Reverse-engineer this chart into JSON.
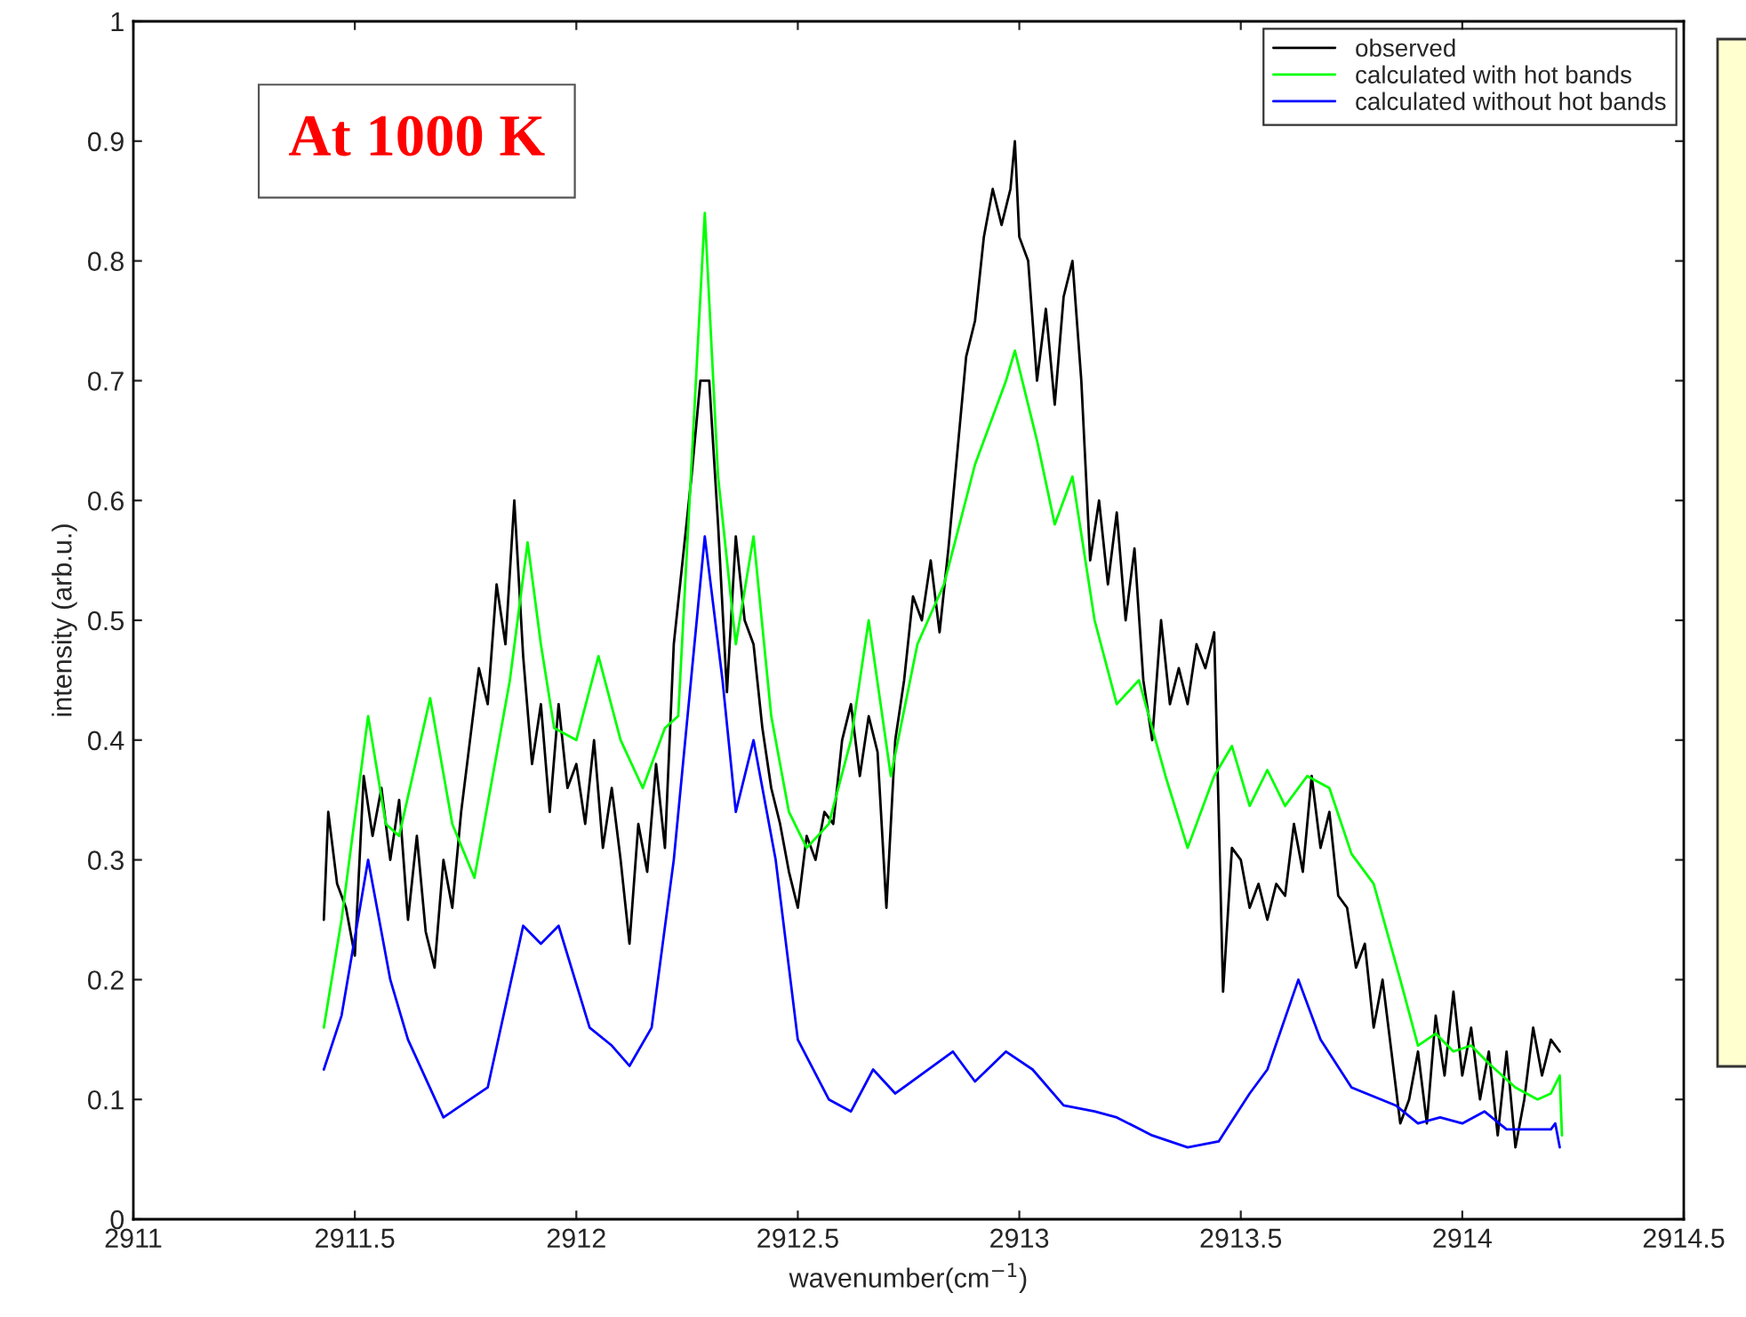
{
  "chart_data": {
    "type": "line",
    "xlabel": "wavenumber(cm$^{−1}$)",
    "ylabel": "intensity (arb.u.)",
    "annotations": [
      "At 1000 K"
    ],
    "xlim": [
      2911,
      2914.5
    ],
    "xticks": [
      2911,
      2911.5,
      2912,
      2912.5,
      2913,
      2913.5,
      2914,
      2914.5
    ],
    "ylim": [
      0,
      1
    ],
    "yticks": [
      0,
      0.1,
      0.2,
      0.3,
      0.4,
      0.5,
      0.6,
      0.7,
      0.8,
      0.9,
      1
    ],
    "grid": false,
    "legend": "top right",
    "marker": "none",
    "line_style": "solid",
    "series": [
      {
        "name": "observed",
        "color": "#000000",
        "x": [
          2911.43,
          2911.44,
          2911.46,
          2911.48,
          2911.5,
          2911.52,
          2911.54,
          2911.56,
          2911.58,
          2911.6,
          2911.62,
          2911.64,
          2911.66,
          2911.68,
          2911.7,
          2911.72,
          2911.74,
          2911.76,
          2911.78,
          2911.8,
          2911.82,
          2911.84,
          2911.86,
          2911.88,
          2911.9,
          2911.92,
          2911.94,
          2911.96,
          2911.98,
          2912.0,
          2912.02,
          2912.04,
          2912.06,
          2912.08,
          2912.1,
          2912.12,
          2912.14,
          2912.16,
          2912.18,
          2912.2,
          2912.22,
          2912.24,
          2912.26,
          2912.28,
          2912.3,
          2912.32,
          2912.34,
          2912.36,
          2912.38,
          2912.4,
          2912.42,
          2912.44,
          2912.46,
          2912.48,
          2912.5,
          2912.52,
          2912.54,
          2912.56,
          2912.58,
          2912.6,
          2912.62,
          2912.64,
          2912.66,
          2912.68,
          2912.7,
          2912.72,
          2912.74,
          2912.76,
          2912.78,
          2912.8,
          2912.82,
          2912.84,
          2912.86,
          2912.88,
          2912.9,
          2912.92,
          2912.94,
          2912.96,
          2912.98,
          2912.99,
          2913.0,
          2913.02,
          2913.04,
          2913.06,
          2913.08,
          2913.1,
          2913.12,
          2913.14,
          2913.16,
          2913.18,
          2913.2,
          2913.22,
          2913.24,
          2913.26,
          2913.28,
          2913.3,
          2913.32,
          2913.34,
          2913.36,
          2913.38,
          2913.4,
          2913.42,
          2913.44,
          2913.46,
          2913.48,
          2913.5,
          2913.52,
          2913.54,
          2913.56,
          2913.58,
          2913.6,
          2913.62,
          2913.64,
          2913.66,
          2913.68,
          2913.7,
          2913.72,
          2913.74,
          2913.76,
          2913.78,
          2913.8,
          2913.82,
          2913.84,
          2913.86,
          2913.88,
          2913.9,
          2913.92,
          2913.94,
          2913.96,
          2913.98,
          2914.0,
          2914.02,
          2914.04,
          2914.06,
          2914.08,
          2914.1,
          2914.12,
          2914.14,
          2914.16,
          2914.18,
          2914.2,
          2914.22
        ],
        "values": [
          0.25,
          0.34,
          0.28,
          0.26,
          0.22,
          0.37,
          0.32,
          0.36,
          0.3,
          0.35,
          0.25,
          0.32,
          0.24,
          0.21,
          0.3,
          0.26,
          0.34,
          0.4,
          0.46,
          0.43,
          0.53,
          0.48,
          0.6,
          0.47,
          0.38,
          0.43,
          0.34,
          0.43,
          0.36,
          0.38,
          0.33,
          0.4,
          0.31,
          0.36,
          0.3,
          0.23,
          0.33,
          0.29,
          0.38,
          0.31,
          0.48,
          0.55,
          0.62,
          0.7,
          0.7,
          0.58,
          0.44,
          0.57,
          0.5,
          0.48,
          0.41,
          0.36,
          0.33,
          0.29,
          0.26,
          0.32,
          0.3,
          0.34,
          0.33,
          0.4,
          0.43,
          0.37,
          0.42,
          0.39,
          0.26,
          0.4,
          0.45,
          0.52,
          0.5,
          0.55,
          0.49,
          0.56,
          0.64,
          0.72,
          0.75,
          0.82,
          0.86,
          0.83,
          0.86,
          0.9,
          0.82,
          0.8,
          0.7,
          0.76,
          0.68,
          0.77,
          0.8,
          0.7,
          0.55,
          0.6,
          0.53,
          0.59,
          0.5,
          0.56,
          0.45,
          0.4,
          0.5,
          0.43,
          0.46,
          0.43,
          0.48,
          0.46,
          0.49,
          0.19,
          0.31,
          0.3,
          0.26,
          0.28,
          0.25,
          0.28,
          0.27,
          0.33,
          0.29,
          0.37,
          0.31,
          0.34,
          0.27,
          0.26,
          0.21,
          0.23,
          0.16,
          0.2,
          0.14,
          0.08,
          0.1,
          0.14,
          0.08,
          0.17,
          0.12,
          0.19,
          0.12,
          0.16,
          0.1,
          0.14,
          0.07,
          0.14,
          0.06,
          0.1,
          0.16,
          0.12,
          0.15,
          0.14
        ]
      },
      {
        "name": "calculated with hot bands",
        "color": "#00ff00",
        "x": [
          2911.43,
          2911.47,
          2911.53,
          2911.57,
          2911.6,
          2911.67,
          2911.72,
          2911.77,
          2911.85,
          2911.89,
          2911.92,
          2911.95,
          2912.0,
          2912.05,
          2912.1,
          2912.15,
          2912.2,
          2912.23,
          2912.27,
          2912.29,
          2912.32,
          2912.36,
          2912.4,
          2912.44,
          2912.48,
          2912.52,
          2912.57,
          2912.62,
          2912.66,
          2912.71,
          2912.77,
          2912.83,
          2912.9,
          2912.97,
          2912.99,
          2913.04,
          2913.08,
          2913.12,
          2913.17,
          2913.22,
          2913.27,
          2913.33,
          2913.38,
          2913.44,
          2913.48,
          2913.52,
          2913.56,
          2913.6,
          2913.65,
          2913.7,
          2913.75,
          2913.8,
          2913.86,
          2913.9,
          2913.94,
          2913.98,
          2914.02,
          2914.06,
          2914.12,
          2914.17,
          2914.2,
          2914.22,
          2914.225
        ],
        "values": [
          0.16,
          0.25,
          0.42,
          0.33,
          0.32,
          0.435,
          0.33,
          0.285,
          0.45,
          0.565,
          0.48,
          0.41,
          0.4,
          0.47,
          0.4,
          0.36,
          0.41,
          0.42,
          0.7,
          0.84,
          0.62,
          0.48,
          0.57,
          0.42,
          0.34,
          0.31,
          0.33,
          0.4,
          0.5,
          0.37,
          0.48,
          0.53,
          0.63,
          0.7,
          0.725,
          0.65,
          0.58,
          0.62,
          0.5,
          0.43,
          0.45,
          0.37,
          0.31,
          0.37,
          0.395,
          0.345,
          0.375,
          0.345,
          0.37,
          0.36,
          0.305,
          0.28,
          0.2,
          0.145,
          0.155,
          0.14,
          0.145,
          0.13,
          0.11,
          0.1,
          0.105,
          0.12,
          0.07
        ]
      },
      {
        "name": "calculated without hot bands",
        "color": "#0000ff",
        "x": [
          2911.43,
          2911.47,
          2911.53,
          2911.58,
          2911.62,
          2911.7,
          2911.8,
          2911.88,
          2911.92,
          2911.96,
          2912.03,
          2912.08,
          2912.12,
          2912.17,
          2912.22,
          2912.29,
          2912.33,
          2912.36,
          2912.4,
          2912.45,
          2912.5,
          2912.57,
          2912.62,
          2912.67,
          2912.72,
          2912.85,
          2912.9,
          2912.97,
          2913.03,
          2913.1,
          2913.17,
          2913.22,
          2913.3,
          2913.38,
          2913.45,
          2913.52,
          2913.56,
          2913.63,
          2913.68,
          2913.75,
          2913.85,
          2913.9,
          2913.95,
          2914.0,
          2914.05,
          2914.1,
          2914.2,
          2914.21,
          2914.22
        ],
        "values": [
          0.125,
          0.17,
          0.3,
          0.2,
          0.15,
          0.085,
          0.11,
          0.245,
          0.23,
          0.245,
          0.16,
          0.145,
          0.128,
          0.16,
          0.3,
          0.57,
          0.45,
          0.34,
          0.4,
          0.3,
          0.15,
          0.1,
          0.09,
          0.125,
          0.105,
          0.14,
          0.115,
          0.14,
          0.125,
          0.095,
          0.09,
          0.085,
          0.07,
          0.06,
          0.065,
          0.105,
          0.125,
          0.2,
          0.15,
          0.11,
          0.095,
          0.08,
          0.085,
          0.08,
          0.09,
          0.075,
          0.075,
          0.08,
          0.06
        ]
      }
    ]
  }
}
